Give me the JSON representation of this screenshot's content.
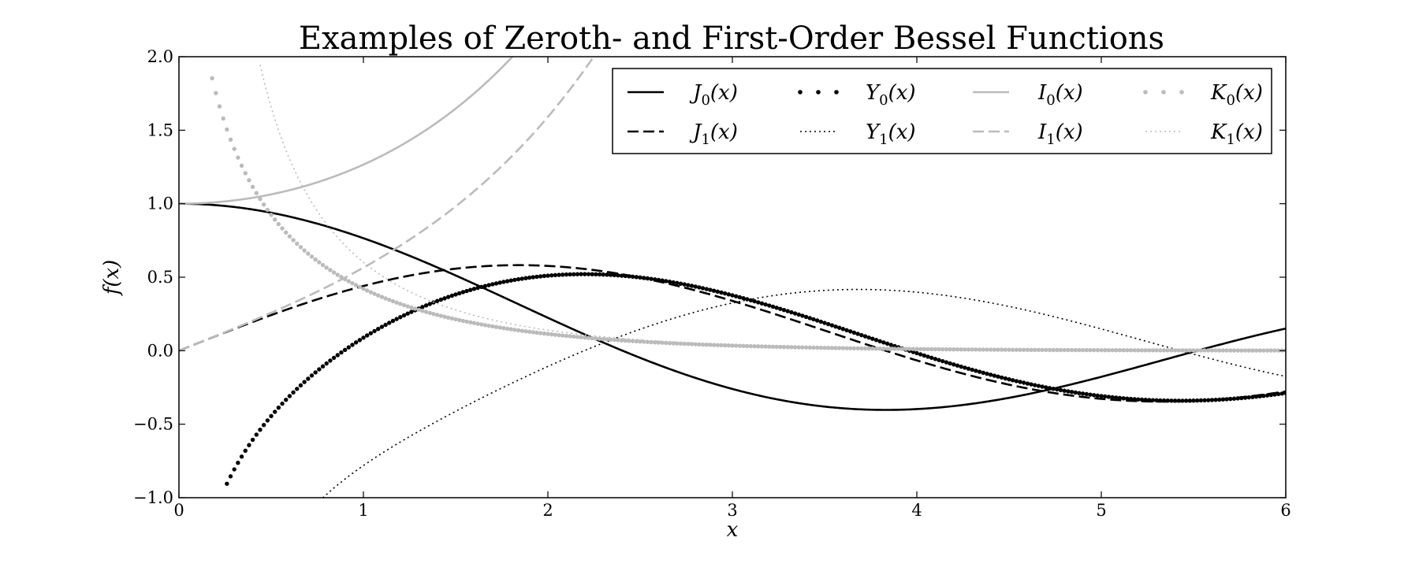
{
  "chart_data": {
    "type": "line",
    "title": "Examples of Zeroth- and First-Order Bessel Functions",
    "xlabel": "x",
    "ylabel": "f(x)",
    "xlim": [
      0,
      6
    ],
    "ylim": [
      -1.0,
      2.0
    ],
    "x_ticks": [
      "0",
      "1",
      "2",
      "3",
      "4",
      "5",
      "6"
    ],
    "y_ticks": [
      "−1.0",
      "−0.5",
      "0.0",
      "0.5",
      "1.0",
      "1.5",
      "2.0"
    ],
    "grid": false,
    "legend_position": "top-right",
    "series": [
      {
        "name": "J0(x)",
        "legend_main": "J",
        "legend_sub": "0",
        "legend_arg": "(x)",
        "color": "#000000",
        "style": "solid",
        "func": "J0",
        "x": [
          0,
          0.5,
          1,
          1.5,
          2,
          2.5,
          3,
          3.5,
          4,
          4.5,
          5,
          5.5,
          6
        ],
        "y": [
          1.0,
          0.938,
          0.765,
          0.512,
          0.224,
          -0.048,
          -0.26,
          -0.38,
          -0.397,
          -0.321,
          -0.178,
          -0.007,
          0.151
        ]
      },
      {
        "name": "J1(x)",
        "legend_main": "J",
        "legend_sub": "1",
        "legend_arg": "(x)",
        "color": "#000000",
        "style": "dashed",
        "func": "J1",
        "x": [
          0,
          0.5,
          1,
          1.5,
          2,
          2.5,
          3,
          3.5,
          4,
          4.5,
          5,
          5.5,
          6
        ],
        "y": [
          0.0,
          0.242,
          0.44,
          0.558,
          0.577,
          0.497,
          0.339,
          0.137,
          -0.066,
          -0.231,
          -0.328,
          -0.341,
          -0.277
        ]
      },
      {
        "name": "Y0(x)",
        "legend_main": "Y",
        "legend_sub": "0",
        "legend_arg": "(x)",
        "color": "#000000",
        "style": "dots",
        "func": "Y0",
        "x": [
          0.25,
          0.5,
          1,
          1.5,
          2,
          2.5,
          3,
          3.5,
          4,
          4.5,
          5,
          5.5,
          6
        ],
        "y": [
          -0.932,
          -0.445,
          0.088,
          0.382,
          0.51,
          0.498,
          0.377,
          0.189,
          -0.017,
          -0.195,
          -0.309,
          -0.339,
          -0.288
        ]
      },
      {
        "name": "Y1(x)",
        "legend_main": "Y",
        "legend_sub": "1",
        "legend_arg": "(x)",
        "color": "#000000",
        "style": "dotted",
        "func": "Y1",
        "x": [
          0.78,
          1,
          1.5,
          2,
          2.5,
          3,
          3.5,
          4,
          4.5,
          5,
          5.5,
          6
        ],
        "y": [
          -1.0,
          -0.781,
          -0.412,
          -0.107,
          0.146,
          0.325,
          0.41,
          0.398,
          0.301,
          0.148,
          -0.024,
          -0.175
        ]
      },
      {
        "name": "I0(x)",
        "legend_main": "I",
        "legend_sub": "0",
        "legend_arg": "(x)",
        "color": "#bbbbbb",
        "style": "solid",
        "func": "I0",
        "x": [
          0,
          0.5,
          1,
          1.5,
          1.86
        ],
        "y": [
          1.0,
          1.064,
          1.266,
          1.647,
          2.0
        ]
      },
      {
        "name": "I1(x)",
        "legend_main": "I",
        "legend_sub": "1",
        "legend_arg": "(x)",
        "color": "#bbbbbb",
        "style": "dashed",
        "func": "I1",
        "x": [
          0,
          0.5,
          1,
          1.5,
          2,
          2.24
        ],
        "y": [
          0.0,
          0.258,
          0.565,
          0.982,
          1.591,
          2.0
        ]
      },
      {
        "name": "K0(x)",
        "legend_main": "K",
        "legend_sub": "0",
        "legend_arg": "(x)",
        "color": "#bbbbbb",
        "style": "dots",
        "func": "K0",
        "x": [
          0.18,
          0.5,
          1,
          1.5,
          2,
          3,
          4,
          5,
          6
        ],
        "y": [
          1.85,
          0.924,
          0.421,
          0.214,
          0.114,
          0.035,
          0.011,
          0.004,
          0.001
        ]
      },
      {
        "name": "K1(x)",
        "legend_main": "K",
        "legend_sub": "1",
        "legend_arg": "(x)",
        "color": "#bbbbbb",
        "style": "dotted",
        "func": "K1",
        "x": [
          0.44,
          0.5,
          1,
          1.5,
          2,
          3,
          4,
          5,
          6
        ],
        "y": [
          2.0,
          1.656,
          0.602,
          0.277,
          0.14,
          0.04,
          0.012,
          0.004,
          0.001
        ]
      }
    ]
  }
}
